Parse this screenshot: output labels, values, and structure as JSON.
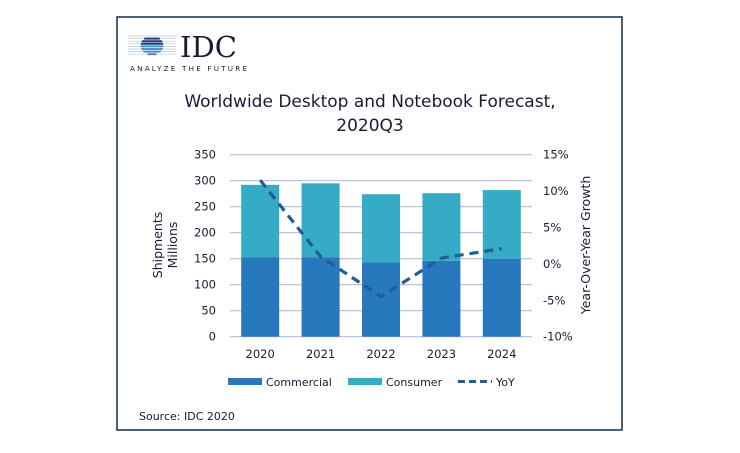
{
  "logo": {
    "name": "IDC",
    "tagline": "ANALYZE THE FUTURE"
  },
  "source": "Source: IDC 2020",
  "colors": {
    "commercial": "#2878bd",
    "consumer": "#36abc6",
    "yoy": "#1f5d94",
    "grid": "#b8b8dc",
    "frame": "#0f2f4a",
    "logo": "#1c3f78"
  },
  "chart_data": {
    "type": "bar",
    "stacked": true,
    "title_lines": [
      "Worldwide Desktop and Notebook Forecast,",
      "2020Q3"
    ],
    "ylabel_lines": [
      "Shipments",
      "Millions"
    ],
    "y2label": "Year-Over-Year Growth",
    "categories": [
      "2020",
      "2021",
      "2022",
      "2023",
      "2024"
    ],
    "ylim": [
      0,
      350
    ],
    "yticks": [
      "0",
      "50",
      "100",
      "150",
      "200",
      "250",
      "300",
      "350"
    ],
    "y2lim": [
      -10,
      15
    ],
    "y2ticks": [
      "-10%",
      "-5%",
      "0%",
      "5%",
      "10%",
      "15%"
    ],
    "grid": true,
    "legend_position": "bottom",
    "series": [
      {
        "name": "Commercial",
        "type": "bar",
        "values": [
          153,
          153,
          143,
          146,
          150
        ]
      },
      {
        "name": "Consumer",
        "type": "bar",
        "values": [
          139,
          142,
          131,
          130,
          132
        ]
      },
      {
        "name": "YoY",
        "type": "line",
        "axis": "right",
        "values": [
          11.5,
          1.0,
          -4.5,
          0.8,
          2.1
        ]
      }
    ]
  }
}
